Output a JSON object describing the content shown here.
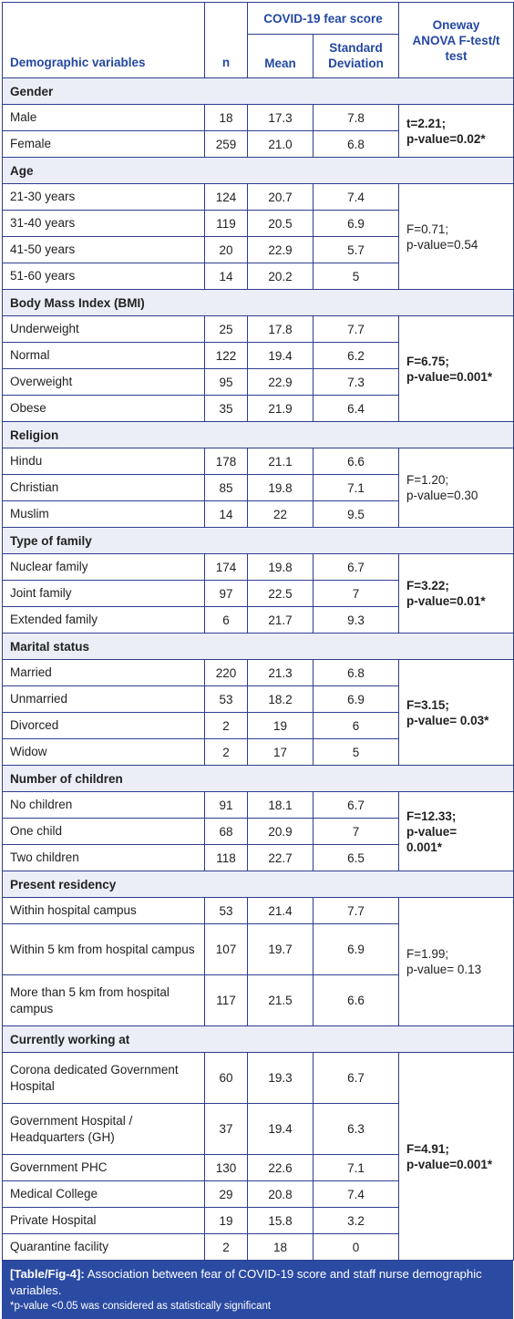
{
  "headers": {
    "demographic": "Demographic variables",
    "n": "n",
    "fear_score": "COVID-19 fear score",
    "mean": "Mean",
    "sd": "Standard Deviation",
    "test": "Oneway ANOVA F-test/t test"
  },
  "sections": [
    {
      "title": "Gender",
      "stat_lines": [
        "t=2.21;",
        "p-value=0.02*"
      ],
      "stat_bold": true,
      "rows": [
        [
          "Male",
          "18",
          "17.3",
          "7.8"
        ],
        [
          "Female",
          "259",
          "21.0",
          "6.8"
        ]
      ]
    },
    {
      "title": "Age",
      "stat_lines": [
        "F=0.71;",
        "p-value=0.54"
      ],
      "stat_bold": false,
      "rows": [
        [
          "21-30 years",
          "124",
          "20.7",
          "7.4"
        ],
        [
          "31-40 years",
          "119",
          "20.5",
          "6.9"
        ],
        [
          "41-50 years",
          "20",
          "22.9",
          "5.7"
        ],
        [
          "51-60 years",
          "14",
          "20.2",
          "5"
        ]
      ]
    },
    {
      "title": "Body Mass Index (BMI)",
      "stat_lines": [
        "F=6.75;",
        "p-value=0.001*"
      ],
      "stat_bold": true,
      "rows": [
        [
          "Underweight",
          "25",
          "17.8",
          "7.7"
        ],
        [
          "Normal",
          "122",
          "19.4",
          "6.2"
        ],
        [
          "Overweight",
          "95",
          "22.9",
          "7.3"
        ],
        [
          "Obese",
          "35",
          "21.9",
          "6.4"
        ]
      ]
    },
    {
      "title": "Religion",
      "stat_lines": [
        "F=1.20;",
        "p-value=0.30"
      ],
      "stat_bold": false,
      "rows": [
        [
          "Hindu",
          "178",
          "21.1",
          "6.6"
        ],
        [
          "Christian",
          "85",
          "19.8",
          "7.1"
        ],
        [
          "Muslim",
          "14",
          "22",
          "9.5"
        ]
      ]
    },
    {
      "title": "Type of family",
      "stat_lines": [
        "F=3.22;",
        "p-value=0.01*"
      ],
      "stat_bold": true,
      "rows": [
        [
          "Nuclear family",
          "174",
          "19.8",
          "6.7"
        ],
        [
          "Joint family",
          "97",
          "22.5",
          "7"
        ],
        [
          "Extended family",
          "6",
          "21.7",
          "9.3"
        ]
      ]
    },
    {
      "title": "Marital status",
      "stat_lines": [
        "F=3.15;",
        "p-value= 0.03*"
      ],
      "stat_bold": true,
      "rows": [
        [
          "Married",
          "220",
          "21.3",
          "6.8"
        ],
        [
          "Unmarried",
          "53",
          "18.2",
          "6.9"
        ],
        [
          "Divorced",
          "2",
          "19",
          "6"
        ],
        [
          "Widow",
          "2",
          "17",
          "5"
        ]
      ]
    },
    {
      "title": "Number of children",
      "stat_lines": [
        "F=12.33;",
        "p-value=",
        "0.001*"
      ],
      "stat_bold": true,
      "rows": [
        [
          "No children",
          "91",
          "18.1",
          "6.7"
        ],
        [
          "One child",
          "68",
          "20.9",
          "7"
        ],
        [
          "Two children",
          "118",
          "22.7",
          "6.5"
        ]
      ]
    },
    {
      "title": "Present residency",
      "stat_lines": [
        "F=1.99;",
        "p-value= 0.13"
      ],
      "stat_bold": false,
      "rows": [
        [
          "Within hospital campus",
          "53",
          "21.4",
          "7.7"
        ],
        [
          "Within 5 km from hospital campus",
          "107",
          "19.7",
          "6.9"
        ],
        [
          "More than 5 km from hospital campus",
          "117",
          "21.5",
          "6.6"
        ]
      ]
    },
    {
      "title": "Currently working at",
      "stat_lines": [
        "F=4.91;",
        "p-value=0.001*"
      ],
      "stat_bold": true,
      "rows": [
        [
          "Corona dedicated Government Hospital",
          "60",
          "19.3",
          "6.7"
        ],
        [
          "Government Hospital / Headquarters (GH)",
          "37",
          "19.4",
          "6.3"
        ],
        [
          "Government PHC",
          "130",
          "22.6",
          "7.1"
        ],
        [
          "Medical College",
          "29",
          "20.8",
          "7.4"
        ],
        [
          "Private Hospital",
          "19",
          "15.8",
          "3.2"
        ],
        [
          "Quarantine facility",
          "2",
          "18",
          "0"
        ]
      ]
    }
  ],
  "caption": {
    "label": "[Table/Fig-4]:",
    "text": " Association between fear of COVID-19 score and staff nurse demographic variables.",
    "note": "*p-value <0.05 was considered as statistically significant"
  }
}
